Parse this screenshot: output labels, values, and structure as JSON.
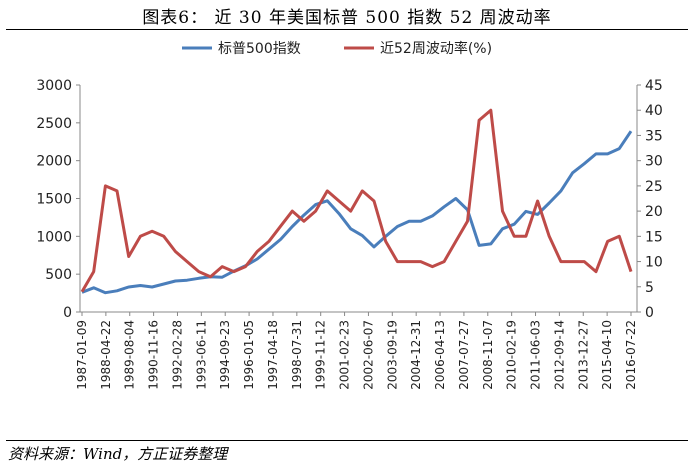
{
  "figure": {
    "title": "图表6：  近 30 年美国标普 500 指数 52 周波动率",
    "source": "资料来源：Wind，方正证券整理"
  },
  "chart_data": {
    "type": "line",
    "x": [
      "1987-01-09",
      "1987-12-25",
      "1988-04-22",
      "1989-01-06",
      "1989-08-04",
      "1990-06-01",
      "1990-11-16",
      "1991-07-05",
      "1992-02-28",
      "1992-10-16",
      "1993-06-11",
      "1994-01-28",
      "1994-09-23",
      "1995-05-12",
      "1996-01-05",
      "1996-08-23",
      "1997-04-18",
      "1997-12-05",
      "1998-07-31",
      "1999-03-19",
      "1999-11-12",
      "2000-06-30",
      "2001-02-23",
      "2001-10-12",
      "2002-06-07",
      "2003-01-24",
      "2003-09-19",
      "2004-05-07",
      "2004-12-31",
      "2005-08-19",
      "2006-04-13",
      "2006-11-30",
      "2007-07-27",
      "2008-03-14",
      "2008-11-07",
      "2009-06-26",
      "2010-02-19",
      "2010-10-08",
      "2011-06-03",
      "2012-01-20",
      "2012-09-14",
      "2013-05-03",
      "2013-12-27",
      "2014-08-15",
      "2015-04-10",
      "2015-11-27",
      "2016-07-22",
      "2017-03-10"
    ],
    "x_tick_labels": [
      "1987-01-09",
      "1988-04-22",
      "1989-08-04",
      "1990-11-16",
      "1992-02-28",
      "1993-06-11",
      "1994-09-23",
      "1996-01-05",
      "1997-04-18",
      "1998-07-31",
      "1999-11-12",
      "2001-02-23",
      "2002-06-07",
      "2003-09-19",
      "2004-12-31",
      "2006-04-13",
      "2007-07-27",
      "2008-11-07",
      "2010-02-19",
      "2011-06-03",
      "2012-09-14",
      "2013-12-27",
      "2015-04-10",
      "2016-07-22"
    ],
    "series": [
      {
        "name": "标普500指数",
        "axis": "left",
        "color": "#4a7ebb",
        "values": [
          260,
          320,
          255,
          280,
          330,
          350,
          330,
          370,
          410,
          420,
          445,
          465,
          460,
          540,
          610,
          700,
          830,
          960,
          1130,
          1280,
          1420,
          1470,
          1300,
          1100,
          1010,
          860,
          1000,
          1130,
          1200,
          1200,
          1270,
          1390,
          1500,
          1350,
          880,
          900,
          1100,
          1160,
          1330,
          1290,
          1440,
          1600,
          1840,
          1960,
          2090,
          2090,
          2160,
          2390
        ]
      },
      {
        "name": "近52周波动率(%)",
        "axis": "right",
        "color": "#be4b48",
        "values": [
          4,
          8,
          25,
          24,
          11,
          15,
          16,
          15,
          12,
          10,
          8,
          7,
          9,
          8,
          9,
          12,
          14,
          17,
          20,
          18,
          20,
          24,
          22,
          20,
          24,
          22,
          14,
          10,
          10,
          10,
          9,
          10,
          14,
          18,
          38,
          40,
          20,
          15,
          15,
          22,
          15,
          10,
          10,
          10,
          8,
          14,
          15,
          8
        ]
      }
    ],
    "left_axis": {
      "min": 0,
      "max": 3000,
      "ticks": [
        "0",
        "500",
        "1000",
        "1500",
        "2000",
        "2500",
        "3000"
      ]
    },
    "right_axis": {
      "min": 0,
      "max": 45,
      "ticks": [
        "0",
        "5",
        "10",
        "15",
        "20",
        "25",
        "30",
        "35",
        "40",
        "45"
      ]
    },
    "legend_position": "top",
    "grid": false
  },
  "colors": {
    "index_line": "#4a7ebb",
    "vol_line": "#be4b48",
    "axis": "#888888"
  }
}
